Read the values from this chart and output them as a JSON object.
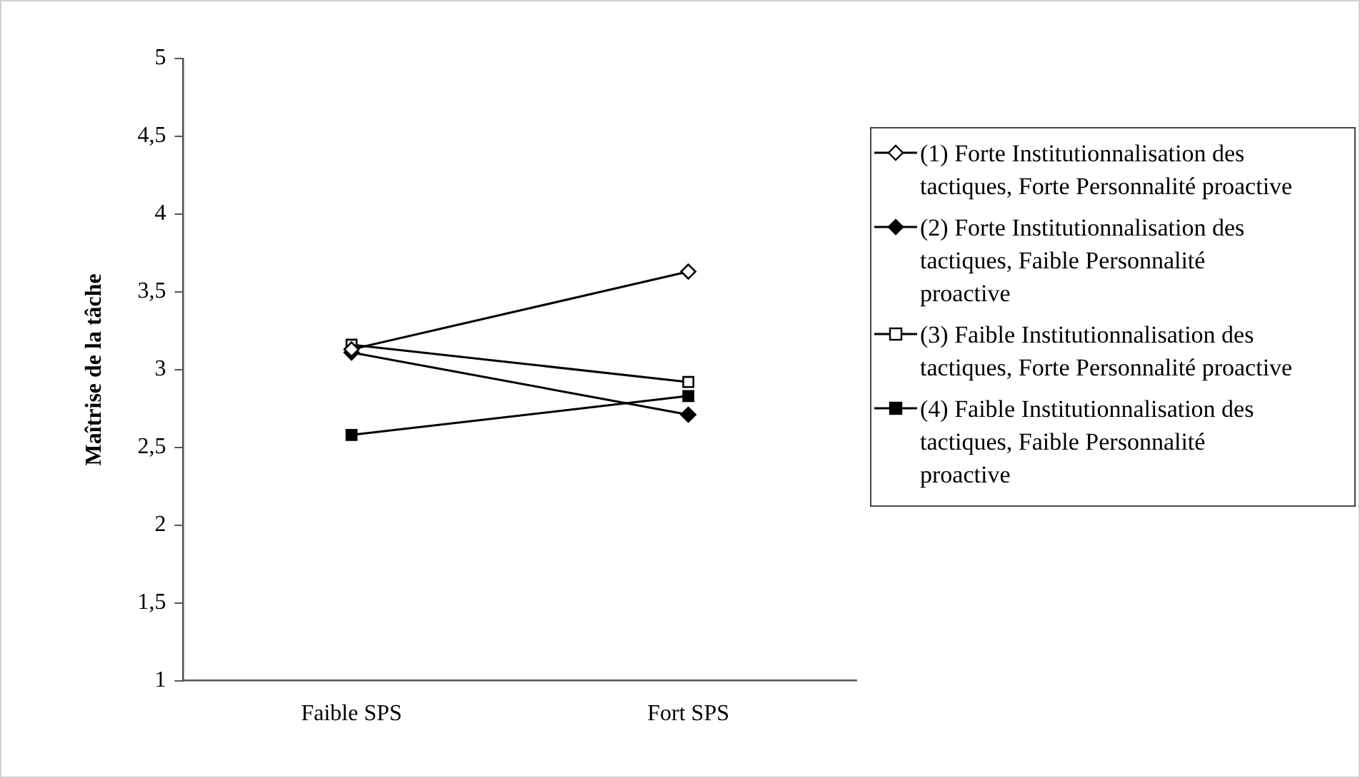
{
  "chart_data": {
    "type": "line",
    "ylabel": "Maîtrise de la tâche",
    "categories": [
      "Faible SPS",
      "Fort SPS"
    ],
    "ylim": [
      1,
      5
    ],
    "yticks": [
      1,
      {
        "value": 1.5,
        "label": "1,5"
      },
      2,
      {
        "value": 2.5,
        "label": "2,5"
      },
      3,
      {
        "value": 3.5,
        "label": "3,5"
      },
      4,
      {
        "value": 4.5,
        "label": "4,5"
      },
      5
    ],
    "grid": false,
    "legend": "right",
    "line_style": "solid",
    "series": [
      {
        "name": "(1) Forte Institutionnalisation des tactiques, Forte Personnalité proactive",
        "color": "#000000",
        "marker": "diamond",
        "colors": [
          "#ffffff",
          "#ffffff"
        ],
        "values": [
          3.13,
          3.63
        ]
      },
      {
        "name": "(2) Forte Institutionnalisation des tactiques, Faible Personnalité proactive",
        "color": "#000000",
        "marker": "diamond",
        "colors": [
          "#000000",
          "#000000"
        ],
        "values": [
          3.11,
          2.71
        ]
      },
      {
        "name": "(3) Faible Institutionnalisation des tactiques, Forte Personnalité proactive",
        "color": "#000000",
        "marker": "square",
        "colors": [
          "#ffffff",
          "#ffffff"
        ],
        "values": [
          3.16,
          2.92
        ]
      },
      {
        "name": "(4) Faible Institutionnalisation des tactiques, Faible Personnalité proactive",
        "color": "#000000",
        "marker": "square",
        "colors": [
          "#000000",
          "#000000"
        ],
        "values": [
          2.58,
          2.83
        ]
      }
    ]
  }
}
